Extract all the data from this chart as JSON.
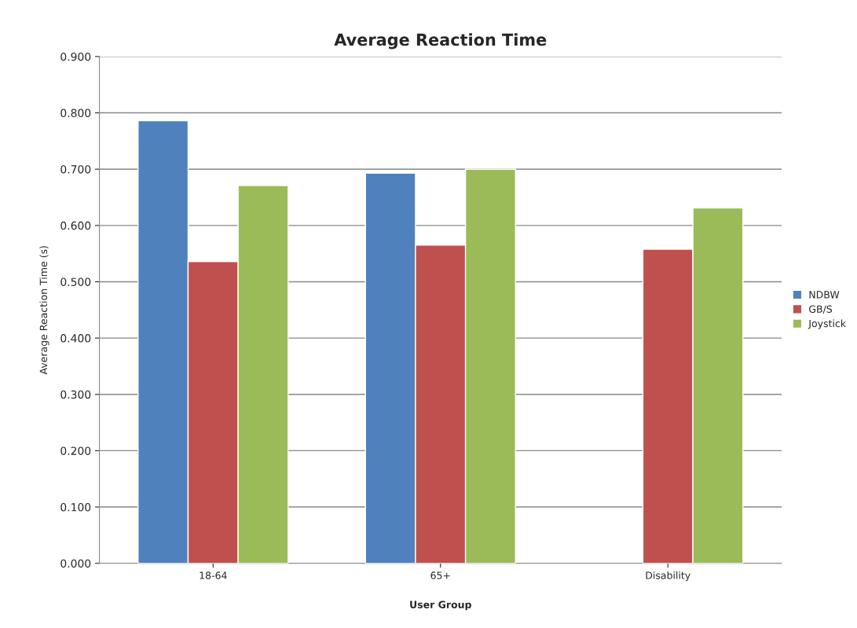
{
  "chart_data": {
    "type": "bar",
    "title": "Average Reaction Time",
    "xlabel": "User Group",
    "ylabel": "Average Reaction Time (s)",
    "categories": [
      "18-64",
      "65+",
      "Disability"
    ],
    "series": [
      {
        "name": "NDBW",
        "color": "#4f81bd",
        "values": [
          0.786,
          0.693,
          null
        ]
      },
      {
        "name": "GB/S",
        "color": "#c0504d",
        "values": [
          0.536,
          0.565,
          0.558
        ]
      },
      {
        "name": "Joystick",
        "color": "#9bbb59",
        "values": [
          0.671,
          0.7,
          0.631
        ]
      }
    ],
    "ylim": [
      0,
      0.9
    ],
    "yticks": [
      {
        "value": 0,
        "label": "0.000"
      },
      {
        "value": 0.1,
        "label": "0.100"
      },
      {
        "value": 0.2,
        "label": "0.200"
      },
      {
        "value": 0.3,
        "label": "0.300"
      },
      {
        "value": 0.4,
        "label": "0.400"
      },
      {
        "value": 0.5,
        "label": "0.500"
      },
      {
        "value": 0.6,
        "label": "0.600"
      },
      {
        "value": 0.7,
        "label": "0.700"
      },
      {
        "value": 0.8,
        "label": "0.800"
      },
      {
        "value": 0.9,
        "label": "0.900"
      }
    ],
    "grid": "y",
    "legend": "right"
  }
}
